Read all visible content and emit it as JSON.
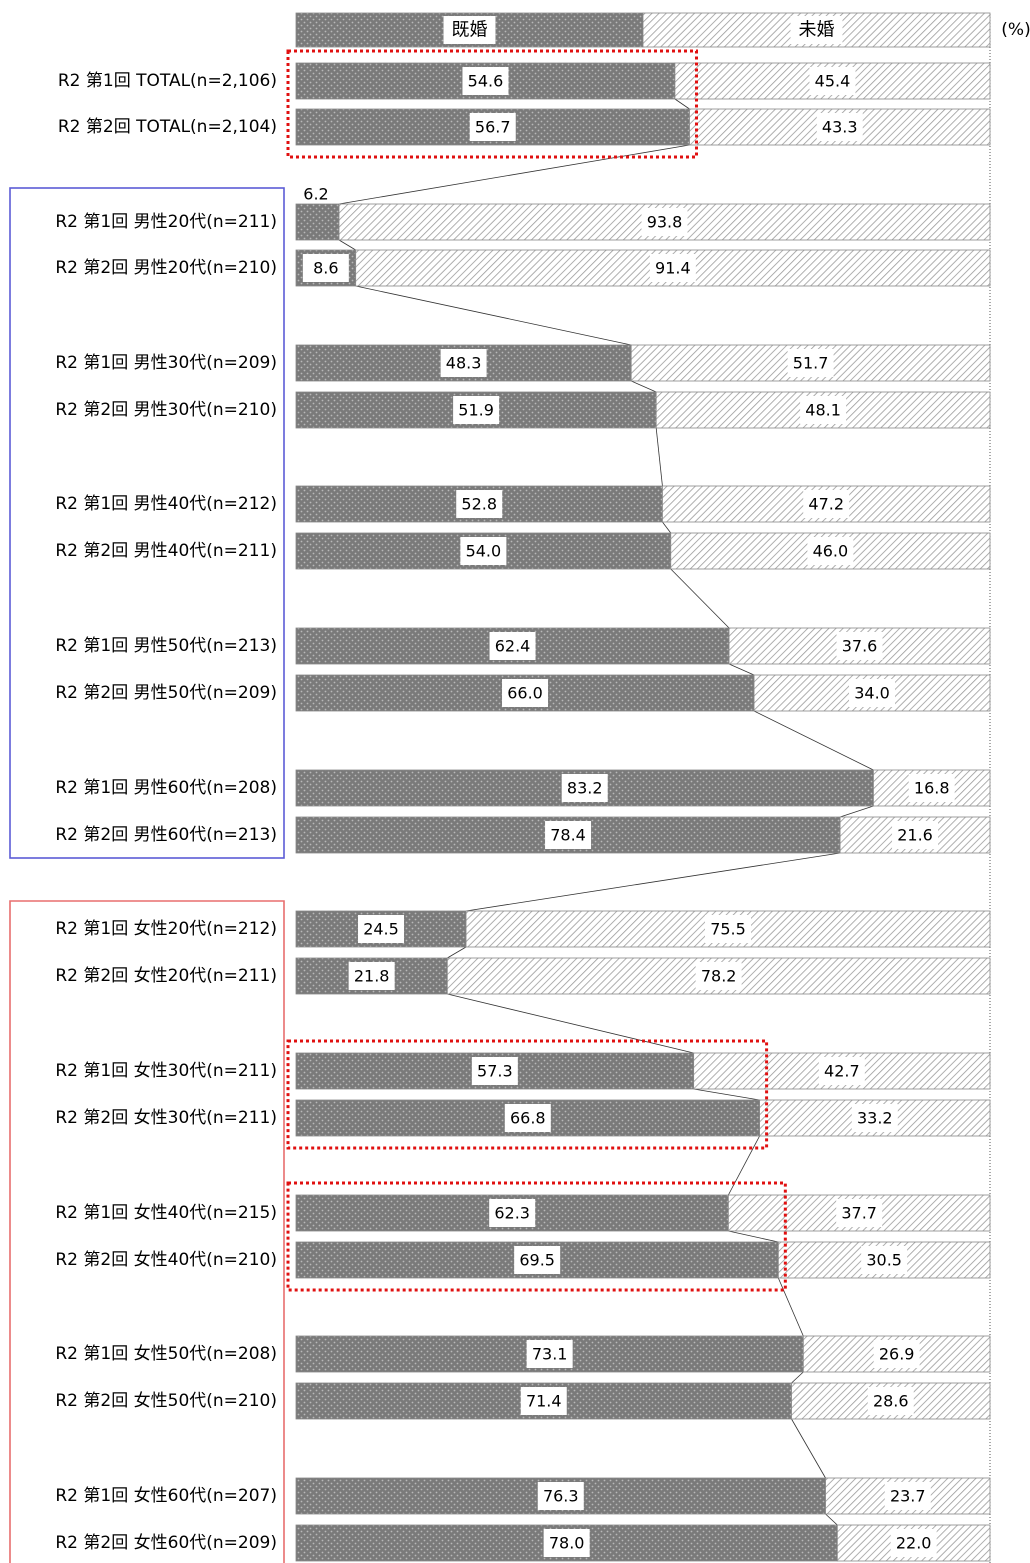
{
  "chart_data": {
    "type": "bar",
    "orientation": "horizontal",
    "stacked": "100%",
    "unit": "(%)",
    "legend": {
      "placement": "top",
      "entries": [
        "既婚",
        "未婚"
      ]
    },
    "series": [
      {
        "name": "既婚",
        "color": "#7a7a7a",
        "pattern": "dotted"
      },
      {
        "name": "未婚",
        "color": "#ffffff",
        "pattern": "hatched"
      }
    ],
    "categories": [
      "R2 第1回 TOTAL(n=2,106)",
      "R2 第2回 TOTAL(n=2,104)",
      "R2 第1回 男性20代(n=211)",
      "R2 第2回 男性20代(n=210)",
      "R2 第1回 男性30代(n=209)",
      "R2 第2回 男性30代(n=210)",
      "R2 第1回 男性40代(n=212)",
      "R2 第2回 男性40代(n=211)",
      "R2 第1回 男性50代(n=213)",
      "R2 第2回 男性50代(n=209)",
      "R2 第1回 男性60代(n=208)",
      "R2 第2回 男性60代(n=213)",
      "R2 第1回 女性20代(n=212)",
      "R2 第2回 女性20代(n=211)",
      "R2 第1回 女性30代(n=211)",
      "R2 第2回 女性30代(n=211)",
      "R2 第1回 女性40代(n=215)",
      "R2 第2回 女性40代(n=210)",
      "R2 第1回 女性50代(n=208)",
      "R2 第2回 女性50代(n=210)",
      "R2 第1回 女性60代(n=207)",
      "R2 第2回 女性60代(n=209)"
    ],
    "values": {
      "既婚": [
        54.6,
        56.7,
        6.2,
        8.6,
        48.3,
        51.9,
        52.8,
        54.0,
        62.4,
        66.0,
        83.2,
        78.4,
        24.5,
        21.8,
        57.3,
        66.8,
        62.3,
        69.5,
        73.1,
        71.4,
        76.3,
        78.0
      ],
      "未婚": [
        45.4,
        43.3,
        93.8,
        91.4,
        51.7,
        48.1,
        47.2,
        46.0,
        37.6,
        34.0,
        16.8,
        21.6,
        75.5,
        78.2,
        42.7,
        33.2,
        37.7,
        30.5,
        26.9,
        28.6,
        23.7,
        22.0
      ]
    },
    "labels_married": [
      "54.6",
      "56.7",
      "6.2",
      "8.6",
      "48.3",
      "51.9",
      "52.8",
      "54.0",
      "62.4",
      "66.0",
      "83.2",
      "78.4",
      "24.5",
      "21.8",
      "57.3",
      "66.8",
      "62.3",
      "69.5",
      "73.1",
      "71.4",
      "76.3",
      "78.0"
    ],
    "labels_unmarried": [
      "45.4",
      "43.3",
      "93.8",
      "91.4",
      "51.7",
      "48.1",
      "47.2",
      "46.0",
      "37.6",
      "34.0",
      "16.8",
      "21.6",
      "75.5",
      "78.2",
      "42.7",
      "33.2",
      "37.7",
      "30.5",
      "26.9",
      "28.6",
      "23.7",
      "22.0"
    ],
    "xlim": [
      0,
      100
    ],
    "highlights": {
      "dotted_red_boxes": [
        [
          0,
          1
        ],
        [
          14,
          15
        ],
        [
          16,
          17
        ]
      ],
      "group_frames": [
        {
          "group": "男性",
          "rows": [
            2,
            11
          ],
          "color": "#5b5bd6"
        },
        {
          "group": "女性",
          "rows": [
            12,
            21
          ],
          "color": "#e86e6e"
        }
      ]
    }
  }
}
